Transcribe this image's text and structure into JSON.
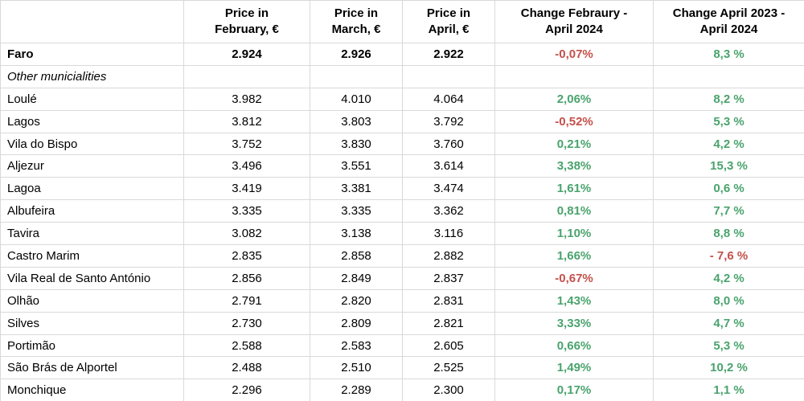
{
  "colors": {
    "positive_green": "#4aa36d",
    "negative_red": "#c4504a",
    "grid": "#d9d9d9",
    "text": "#000000",
    "background": "#ffffff"
  },
  "chart_data": {
    "type": "table",
    "title": "",
    "columns": [
      "",
      "Price in\nFebruary, €",
      "Price in\nMarch, €",
      "Price in\nApril, €",
      "Change Febraury -\nApril 2024",
      "Change April 2023 -\nApril 2024"
    ],
    "rows": [
      {
        "label": "Faro",
        "label_style": "bold",
        "values_bold": true,
        "values": [
          "2.924",
          "2.926",
          "2.922"
        ],
        "changes": [
          {
            "text": "-0,07%",
            "color": "red"
          },
          {
            "text": "8,3 %",
            "color": "green"
          }
        ]
      },
      {
        "label": "Other municialities",
        "label_style": "italic",
        "values_bold": false,
        "values": [
          "",
          "",
          ""
        ],
        "changes": [
          {
            "text": "",
            "color": "green"
          },
          {
            "text": "",
            "color": "green"
          }
        ]
      },
      {
        "label": "Loulé",
        "label_style": "",
        "values_bold": false,
        "values": [
          "3.982",
          "4.010",
          "4.064"
        ],
        "changes": [
          {
            "text": "2,06%",
            "color": "green"
          },
          {
            "text": "8,2 %",
            "color": "green"
          }
        ]
      },
      {
        "label": "Lagos",
        "label_style": "",
        "values_bold": false,
        "values": [
          "3.812",
          "3.803",
          "3.792"
        ],
        "changes": [
          {
            "text": "-0,52%",
            "color": "red"
          },
          {
            "text": "5,3 %",
            "color": "green"
          }
        ]
      },
      {
        "label": "Vila do Bispo",
        "label_style": "",
        "values_bold": false,
        "values": [
          "3.752",
          "3.830",
          "3.760"
        ],
        "changes": [
          {
            "text": "0,21%",
            "color": "green"
          },
          {
            "text": "4,2 %",
            "color": "green"
          }
        ]
      },
      {
        "label": "Aljezur",
        "label_style": "",
        "values_bold": false,
        "values": [
          "3.496",
          "3.551",
          "3.614"
        ],
        "changes": [
          {
            "text": "3,38%",
            "color": "green"
          },
          {
            "text": "15,3 %",
            "color": "green"
          }
        ]
      },
      {
        "label": "Lagoa",
        "label_style": "",
        "values_bold": false,
        "values": [
          "3.419",
          "3.381",
          "3.474"
        ],
        "changes": [
          {
            "text": "1,61%",
            "color": "green"
          },
          {
            "text": "0,6 %",
            "color": "green"
          }
        ]
      },
      {
        "label": "Albufeira",
        "label_style": "",
        "values_bold": false,
        "values": [
          "3.335",
          "3.335",
          "3.362"
        ],
        "changes": [
          {
            "text": "0,81%",
            "color": "green"
          },
          {
            "text": "7,7 %",
            "color": "green"
          }
        ]
      },
      {
        "label": "Tavira",
        "label_style": "",
        "values_bold": false,
        "values": [
          "3.082",
          "3.138",
          "3.116"
        ],
        "changes": [
          {
            "text": "1,10%",
            "color": "green"
          },
          {
            "text": "8,8 %",
            "color": "green"
          }
        ]
      },
      {
        "label": "Castro Marim",
        "label_style": "",
        "values_bold": false,
        "values": [
          "2.835",
          "2.858",
          "2.882"
        ],
        "changes": [
          {
            "text": "1,66%",
            "color": "green"
          },
          {
            "text": "- 7,6 %",
            "color": "red"
          }
        ]
      },
      {
        "label": "Vila Real de Santo António",
        "label_style": "",
        "values_bold": false,
        "values": [
          "2.856",
          "2.849",
          "2.837"
        ],
        "changes": [
          {
            "text": "-0,67%",
            "color": "red"
          },
          {
            "text": "4,2 %",
            "color": "green"
          }
        ]
      },
      {
        "label": "Olhão",
        "label_style": "",
        "values_bold": false,
        "values": [
          "2.791",
          "2.820",
          "2.831"
        ],
        "changes": [
          {
            "text": "1,43%",
            "color": "green"
          },
          {
            "text": "8,0 %",
            "color": "green"
          }
        ]
      },
      {
        "label": "Silves",
        "label_style": "",
        "values_bold": false,
        "values": [
          "2.730",
          "2.809",
          "2.821"
        ],
        "changes": [
          {
            "text": "3,33%",
            "color": "green"
          },
          {
            "text": "4,7 %",
            "color": "green"
          }
        ]
      },
      {
        "label": "Portimão",
        "label_style": "",
        "values_bold": false,
        "values": [
          "2.588",
          "2.583",
          "2.605"
        ],
        "changes": [
          {
            "text": "0,66%",
            "color": "green"
          },
          {
            "text": "5,3 %",
            "color": "green"
          }
        ]
      },
      {
        "label": "São Brás de Alportel",
        "label_style": "",
        "values_bold": false,
        "values": [
          "2.488",
          "2.510",
          "2.525"
        ],
        "changes": [
          {
            "text": "1,49%",
            "color": "green"
          },
          {
            "text": "10,2 %",
            "color": "green"
          }
        ]
      },
      {
        "label": "Monchique",
        "label_style": "",
        "values_bold": false,
        "values": [
          "2.296",
          "2.289",
          "2.300"
        ],
        "changes": [
          {
            "text": "0,17%",
            "color": "green"
          },
          {
            "text": "1,1 %",
            "color": "green"
          }
        ]
      }
    ]
  }
}
